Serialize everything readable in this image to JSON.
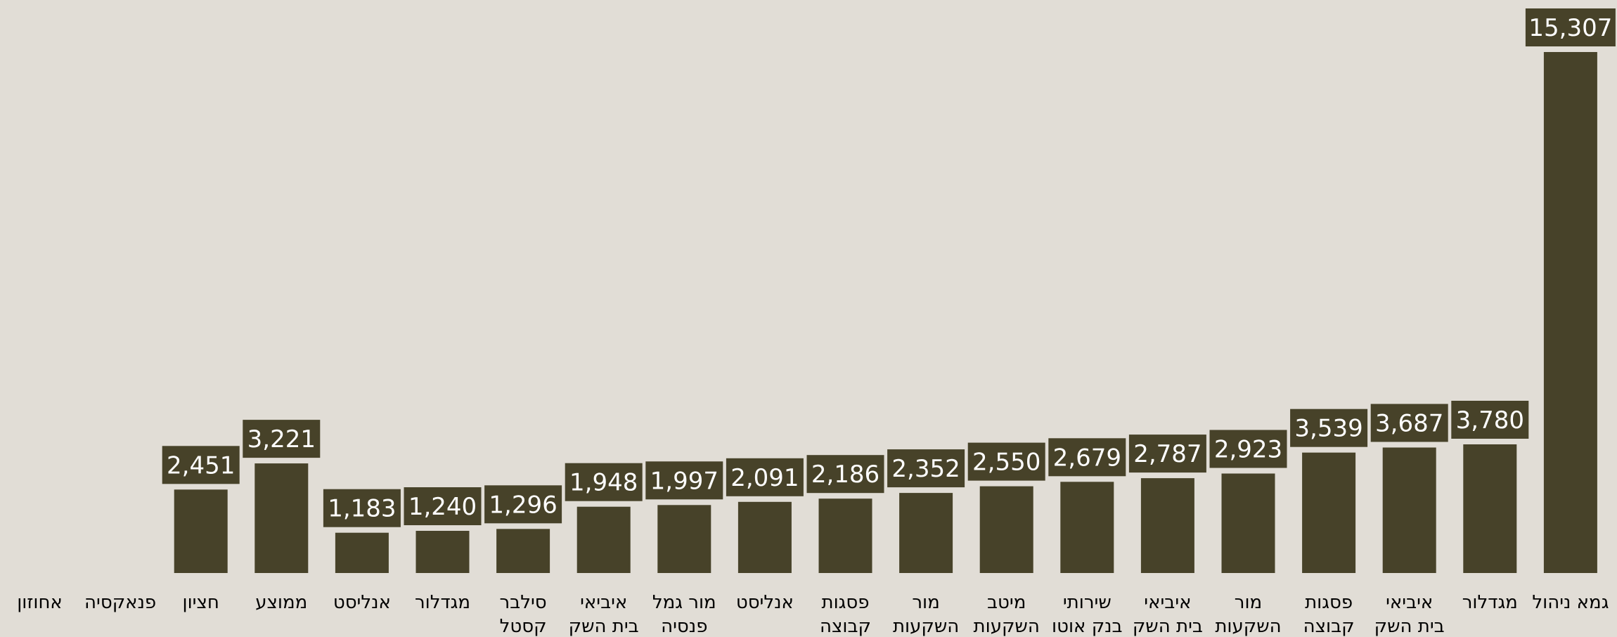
{
  "chart_data": {
    "type": "bar",
    "title": "",
    "xlabel": "",
    "ylabel": "",
    "categories": [
      [
        "אחוזון"
      ],
      [
        "פנאקסיה"
      ],
      [
        "חציון"
      ],
      [
        "ממוצע"
      ],
      [
        "אנליסט"
      ],
      [
        "מגדלור"
      ],
      [
        "סילבר",
        "קסטל"
      ],
      [
        "איביאי",
        "בית השק"
      ],
      [
        "מור גמל",
        "פנסיה"
      ],
      [
        "אנליסט"
      ],
      [
        "פסגות",
        "קבוצה"
      ],
      [
        "מור",
        "השקעות"
      ],
      [
        "מיטב",
        "השקעות"
      ],
      [
        "שירותי",
        "בנק אוטו"
      ],
      [
        "איביאי",
        "בית השק"
      ],
      [
        "מור",
        "השקעות"
      ],
      [
        "פסגות",
        "קבוצה"
      ],
      [
        "איביאי",
        "בית השק"
      ],
      [
        "מגדלור"
      ],
      [
        "גמא ניהול"
      ]
    ],
    "values": [
      null,
      null,
      2451,
      3221,
      1183,
      1240,
      1296,
      1948,
      1997,
      2091,
      2186,
      2352,
      2550,
      2679,
      2787,
      2923,
      3539,
      3687,
      3780,
      15307
    ],
    "value_labels": [
      "",
      "",
      "2,451",
      "3,221",
      "1,183",
      "1,240",
      "1,296",
      "1,948",
      "1,997",
      "2,091",
      "2,186",
      "2,352",
      "2,550",
      "2,679",
      "2,787",
      "2,923",
      "3,539",
      "3,687",
      "3,780",
      "15,307"
    ],
    "ylim": [
      0,
      15307
    ],
    "grid": false,
    "legend": "none",
    "colors": {
      "background": "#e1ddd6",
      "bar": "#474229",
      "label_bg": "#474229",
      "label_text": "#ffffff",
      "category_text": "#000000"
    }
  }
}
